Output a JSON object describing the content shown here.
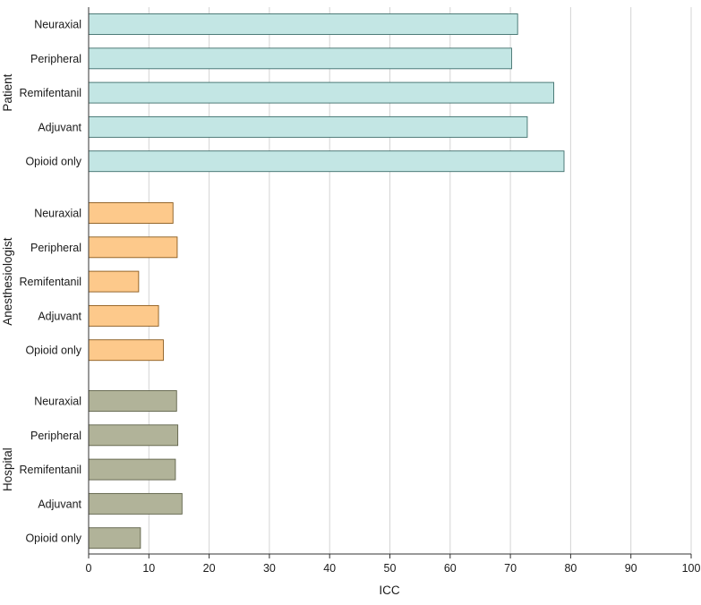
{
  "chart_data": {
    "type": "bar",
    "orientation": "horizontal",
    "xlabel": "ICC",
    "xlim": [
      0,
      100
    ],
    "xticks": [
      "0",
      "10",
      "20",
      "30",
      "40",
      "50",
      "60",
      "70",
      "80",
      "90",
      "100"
    ],
    "grid": "vertical",
    "groups": [
      {
        "name": "Patient",
        "color": "#c3e6e4",
        "categories": [
          "Neuraxial",
          "Peripheral",
          "Remifentanil",
          "Adjuvant",
          "Opioid only"
        ],
        "values": [
          71.2,
          70.2,
          77.2,
          72.8,
          78.9
        ]
      },
      {
        "name": "Anesthesiologist",
        "color": "#fdc98b",
        "categories": [
          "Neuraxial",
          "Peripheral",
          "Remifentanil",
          "Adjuvant",
          "Opioid only"
        ],
        "values": [
          14.0,
          14.7,
          8.3,
          11.6,
          12.4
        ]
      },
      {
        "name": "Hospital",
        "color": "#b1b399",
        "categories": [
          "Neuraxial",
          "Peripheral",
          "Remifentanil",
          "Adjuvant",
          "Opioid only"
        ],
        "values": [
          14.6,
          14.8,
          14.4,
          15.5,
          8.6
        ]
      }
    ]
  }
}
